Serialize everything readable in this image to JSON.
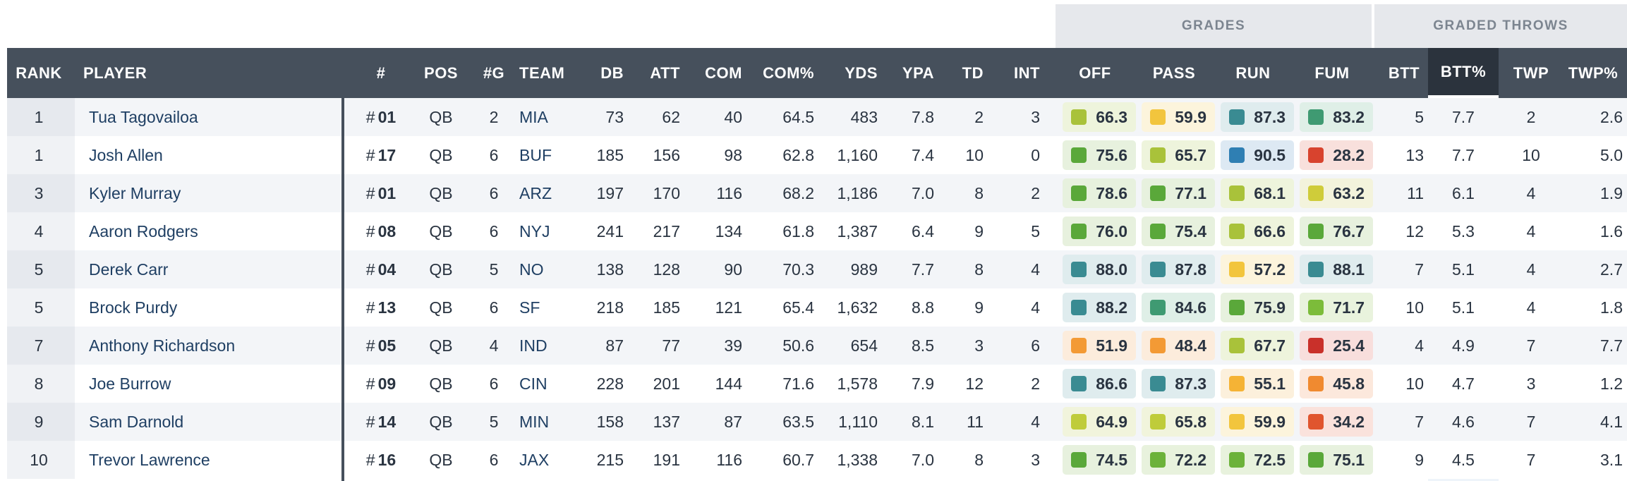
{
  "groups": {
    "grades": "GRADES",
    "graded_throws": "GRADED THROWS"
  },
  "columns": {
    "rank": "RANK",
    "player": "PLAYER",
    "num": "#",
    "pos": "POS",
    "games": "#G",
    "team": "TEAM",
    "db": "DB",
    "att": "ATT",
    "com": "COM",
    "com_pct": "COM%",
    "yds": "YDS",
    "ypa": "YPA",
    "td": "TD",
    "int": "INT",
    "off": "OFF",
    "pass": "PASS",
    "run": "RUN",
    "fum": "FUM",
    "btt": "BTT",
    "btt_pct": "BTT%",
    "twp": "TWP",
    "twp_pct": "TWP%"
  },
  "grade_colors": {
    "dark_green": "#3f9a72",
    "green": "#5aa83a",
    "lime": "#8cc43a",
    "yellowgreen": "#bfcc3a",
    "yellow": "#f2c53d",
    "orange": "#f39a35",
    "red": "#d8432e",
    "teal": "#3a8b92",
    "blue": "#2f7fb3"
  },
  "rows": [
    {
      "rank": "1",
      "player": "Tua Tagovailoa",
      "num_prefix": "#",
      "num": "01",
      "pos": "QB",
      "games": "2",
      "team": "MIA",
      "db": "73",
      "att": "62",
      "com": "40",
      "com_pct": "64.5",
      "yds": "483",
      "ypa": "7.8",
      "td": "2",
      "int": "3",
      "off": {
        "v": "66.3",
        "c": "#a9c23a",
        "bg": "#eef4dc"
      },
      "pass": {
        "v": "59.9",
        "c": "#f2c53d",
        "bg": "#fcf4dc"
      },
      "run": {
        "v": "87.3",
        "c": "#3a8b92",
        "bg": "#dfecee"
      },
      "fum": {
        "v": "83.2",
        "c": "#3f9a72",
        "bg": "#dfefe7"
      },
      "btt": "5",
      "btt_pct": "7.7",
      "twp": "2",
      "twp_pct": "2.6"
    },
    {
      "rank": "1",
      "player": "Josh Allen",
      "num_prefix": "#",
      "num": "17",
      "pos": "QB",
      "games": "6",
      "team": "BUF",
      "db": "185",
      "att": "156",
      "com": "98",
      "com_pct": "62.8",
      "yds": "1,160",
      "ypa": "7.4",
      "td": "10",
      "int": "0",
      "off": {
        "v": "75.6",
        "c": "#5aa83a",
        "bg": "#e7f1de"
      },
      "pass": {
        "v": "65.7",
        "c": "#a9c23a",
        "bg": "#eef4dc"
      },
      "run": {
        "v": "90.5",
        "c": "#2f7fb3",
        "bg": "#dde9f3"
      },
      "fum": {
        "v": "28.2",
        "c": "#d8432e",
        "bg": "#f8e0dc"
      },
      "btt": "13",
      "btt_pct": "7.7",
      "twp": "10",
      "twp_pct": "5.0"
    },
    {
      "rank": "3",
      "player": "Kyler Murray",
      "num_prefix": "#",
      "num": "01",
      "pos": "QB",
      "games": "6",
      "team": "ARZ",
      "db": "197",
      "att": "170",
      "com": "116",
      "com_pct": "68.2",
      "yds": "1,186",
      "ypa": "7.0",
      "td": "8",
      "int": "2",
      "off": {
        "v": "78.6",
        "c": "#5aa83a",
        "bg": "#e7f1de"
      },
      "pass": {
        "v": "77.1",
        "c": "#5aa83a",
        "bg": "#e7f1de"
      },
      "run": {
        "v": "68.1",
        "c": "#a9c23a",
        "bg": "#eef4dc"
      },
      "fum": {
        "v": "63.2",
        "c": "#cfcc3a",
        "bg": "#f3f3dc"
      },
      "btt": "11",
      "btt_pct": "6.1",
      "twp": "4",
      "twp_pct": "1.9"
    },
    {
      "rank": "4",
      "player": "Aaron Rodgers",
      "num_prefix": "#",
      "num": "08",
      "pos": "QB",
      "games": "6",
      "team": "NYJ",
      "db": "241",
      "att": "217",
      "com": "134",
      "com_pct": "61.8",
      "yds": "1,387",
      "ypa": "6.4",
      "td": "9",
      "int": "5",
      "off": {
        "v": "76.0",
        "c": "#5aa83a",
        "bg": "#e7f1de"
      },
      "pass": {
        "v": "75.4",
        "c": "#5aa83a",
        "bg": "#e7f1de"
      },
      "run": {
        "v": "66.6",
        "c": "#a9c23a",
        "bg": "#eef4dc"
      },
      "fum": {
        "v": "76.7",
        "c": "#5aa83a",
        "bg": "#e7f1de"
      },
      "btt": "12",
      "btt_pct": "5.3",
      "twp": "4",
      "twp_pct": "1.6"
    },
    {
      "rank": "5",
      "player": "Derek Carr",
      "num_prefix": "#",
      "num": "04",
      "pos": "QB",
      "games": "5",
      "team": "NO",
      "db": "138",
      "att": "128",
      "com": "90",
      "com_pct": "70.3",
      "yds": "989",
      "ypa": "7.7",
      "td": "8",
      "int": "4",
      "off": {
        "v": "88.0",
        "c": "#3a8b92",
        "bg": "#dfecee"
      },
      "pass": {
        "v": "87.8",
        "c": "#3a8b92",
        "bg": "#dfecee"
      },
      "run": {
        "v": "57.2",
        "c": "#f2c53d",
        "bg": "#fcf4dc"
      },
      "fum": {
        "v": "88.1",
        "c": "#3a8b92",
        "bg": "#dfecee"
      },
      "btt": "7",
      "btt_pct": "5.1",
      "twp": "4",
      "twp_pct": "2.7"
    },
    {
      "rank": "5",
      "player": "Brock Purdy",
      "num_prefix": "#",
      "num": "13",
      "pos": "QB",
      "games": "6",
      "team": "SF",
      "db": "218",
      "att": "185",
      "com": "121",
      "com_pct": "65.4",
      "yds": "1,632",
      "ypa": "8.8",
      "td": "9",
      "int": "4",
      "off": {
        "v": "88.2",
        "c": "#3a8b92",
        "bg": "#dfecee"
      },
      "pass": {
        "v": "84.6",
        "c": "#3f9a72",
        "bg": "#dfefe7"
      },
      "run": {
        "v": "75.9",
        "c": "#5aa83a",
        "bg": "#e7f1de"
      },
      "fum": {
        "v": "71.7",
        "c": "#7cbc3a",
        "bg": "#e9f3dd"
      },
      "btt": "10",
      "btt_pct": "5.1",
      "twp": "4",
      "twp_pct": "1.8"
    },
    {
      "rank": "7",
      "player": "Anthony Richardson",
      "num_prefix": "#",
      "num": "05",
      "pos": "QB",
      "games": "4",
      "team": "IND",
      "db": "87",
      "att": "77",
      "com": "39",
      "com_pct": "50.6",
      "yds": "654",
      "ypa": "8.5",
      "td": "3",
      "int": "6",
      "off": {
        "v": "51.9",
        "c": "#f39a35",
        "bg": "#fcecdc"
      },
      "pass": {
        "v": "48.4",
        "c": "#f39a35",
        "bg": "#fcecdc"
      },
      "run": {
        "v": "67.7",
        "c": "#a9c23a",
        "bg": "#eef4dc"
      },
      "fum": {
        "v": "25.4",
        "c": "#c9302a",
        "bg": "#f8dedc"
      },
      "btt": "4",
      "btt_pct": "4.9",
      "twp": "7",
      "twp_pct": "7.7"
    },
    {
      "rank": "8",
      "player": "Joe Burrow",
      "num_prefix": "#",
      "num": "09",
      "pos": "QB",
      "games": "6",
      "team": "CIN",
      "db": "228",
      "att": "201",
      "com": "144",
      "com_pct": "71.6",
      "yds": "1,578",
      "ypa": "7.9",
      "td": "12",
      "int": "2",
      "off": {
        "v": "86.6",
        "c": "#3a8b92",
        "bg": "#dfecee"
      },
      "pass": {
        "v": "87.3",
        "c": "#3a8b92",
        "bg": "#dfecee"
      },
      "run": {
        "v": "55.1",
        "c": "#f5b335",
        "bg": "#fcf0dc"
      },
      "fum": {
        "v": "45.8",
        "c": "#f08a30",
        "bg": "#fce8dc"
      },
      "btt": "10",
      "btt_pct": "4.7",
      "twp": "3",
      "twp_pct": "1.2"
    },
    {
      "rank": "9",
      "player": "Sam Darnold",
      "num_prefix": "#",
      "num": "14",
      "pos": "QB",
      "games": "5",
      "team": "MIN",
      "db": "158",
      "att": "137",
      "com": "87",
      "com_pct": "63.5",
      "yds": "1,110",
      "ypa": "8.1",
      "td": "11",
      "int": "4",
      "off": {
        "v": "64.9",
        "c": "#bfcc3a",
        "bg": "#f1f4dc"
      },
      "pass": {
        "v": "65.8",
        "c": "#bfcc3a",
        "bg": "#f1f4dc"
      },
      "run": {
        "v": "59.9",
        "c": "#f2c53d",
        "bg": "#fcf4dc"
      },
      "fum": {
        "v": "34.2",
        "c": "#e0552e",
        "bg": "#fae2dc"
      },
      "btt": "7",
      "btt_pct": "4.6",
      "twp": "7",
      "twp_pct": "4.1"
    },
    {
      "rank": "10",
      "player": "Trevor Lawrence",
      "num_prefix": "#",
      "num": "16",
      "pos": "QB",
      "games": "6",
      "team": "JAX",
      "db": "215",
      "att": "191",
      "com": "116",
      "com_pct": "60.7",
      "yds": "1,338",
      "ypa": "7.0",
      "td": "8",
      "int": "3",
      "off": {
        "v": "74.5",
        "c": "#5aa83a",
        "bg": "#e7f1de"
      },
      "pass": {
        "v": "72.2",
        "c": "#6cb23a",
        "bg": "#e8f2dd"
      },
      "run": {
        "v": "72.5",
        "c": "#6cb23a",
        "bg": "#e8f2dd"
      },
      "fum": {
        "v": "75.1",
        "c": "#5aa83a",
        "bg": "#e7f1de"
      },
      "btt": "9",
      "btt_pct": "4.5",
      "twp": "7",
      "twp_pct": "3.1"
    }
  ]
}
